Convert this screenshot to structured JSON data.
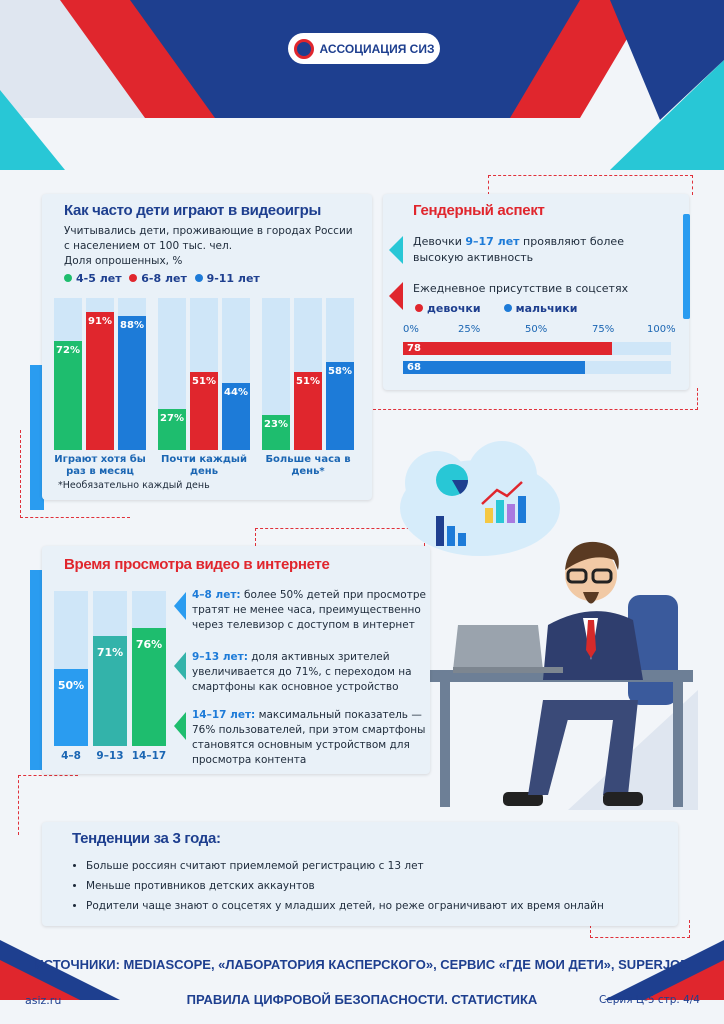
{
  "header": {
    "logo_text": "АССОЦИАЦИЯ СИЗ"
  },
  "colors": {
    "navy": "#1e3f8f",
    "red": "#e0262d",
    "cyan": "#28c7d6",
    "blue": "#1d7bd8",
    "green": "#1ebd6e",
    "teal": "#33b3aa"
  },
  "games": {
    "title": "Как часто дети играют в видеоигры",
    "subtitle_1": "Учитывались дети, проживающие в городах России",
    "subtitle_2": "с населением от 100 тыс. чел.",
    "subtitle_3": "Доля опрошенных, %",
    "legend": [
      "4-5 лет",
      "6-8 лет",
      "9-11 лет"
    ],
    "footnote": "*Необязательно каждый день"
  },
  "gender": {
    "title": "Гендерный аспект",
    "fact_pre": "Девочки ",
    "fact_highlight": "9–17 лет",
    "fact_post": " проявляют более высокую активность",
    "subheading": "Ежедневное присутствие в соцсетях",
    "legend": [
      "девочки",
      "мальчики"
    ],
    "ticks": [
      "0%",
      "25%",
      "50%",
      "75%",
      "100%"
    ]
  },
  "video": {
    "title": "Время просмотра видео в интернете",
    "notes": [
      {
        "label": "4–8 лет:",
        "text": " более 50% детей при просмотре тратят не менее часа, преимущественно через телевизор с доступом в интернет"
      },
      {
        "label": "9–13 лет:",
        "text": " доля активных зрителей увеличивается  до 71%,  с переходом на смартфоны как основное устройство"
      },
      {
        "label": "14–17 лет:",
        "text": " максимальный показатель — 76% пользователей, при этом смартфоны становятся основным устройством для просмотра контента"
      }
    ]
  },
  "trends": {
    "title": "Тенденции за 3 года:",
    "items": [
      "Больше россиян считают приемлемой регистрацию с 13 лет",
      "Меньше противников детских аккаунтов",
      "Родители чаще знают о соцсетях у младших детей, но реже ограничивают их время онлайн"
    ]
  },
  "sources": "ИСТОЧНИКИ: MEDIASCOPE, «ЛАБОРАТОРИЯ КАСПЕРСКОГО», СЕРВИС «ГДЕ МОИ ДЕТИ», SUPERJOB",
  "footer": {
    "site": "asiz.ru",
    "title": "ПРАВИЛА ЦИФРОВОЙ БЕЗОПАСНОСТИ. СТАТИСТИКА",
    "page": "Серия Ц-5 стр. 4/4"
  },
  "chart_data": [
    {
      "type": "bar",
      "title": "Как часто дети играют в видеоигры",
      "ylabel": "Доля опрошенных, %",
      "ylim": [
        0,
        100
      ],
      "categories": [
        "Играют хотя бы раз в месяц",
        "Почти каждый день",
        "Больше часа в день*"
      ],
      "series": [
        {
          "name": "4-5 лет",
          "color": "#1ebd6e",
          "values": [
            72,
            27,
            23
          ]
        },
        {
          "name": "6-8 лет",
          "color": "#e0262d",
          "values": [
            91,
            51,
            51
          ]
        },
        {
          "name": "9-11 лет",
          "color": "#1d7bd8",
          "values": [
            88,
            44,
            58
          ]
        }
      ]
    },
    {
      "type": "bar",
      "title": "Ежедневное присутствие в соцсетях",
      "orientation": "horizontal",
      "xlim": [
        0,
        100
      ],
      "categories": [
        "девочки",
        "мальчики"
      ],
      "values": [
        78,
        68
      ],
      "colors": [
        "#e0262d",
        "#1d7bd8"
      ]
    },
    {
      "type": "bar",
      "title": "Время просмотра видео в интернете",
      "ylim": [
        0,
        100
      ],
      "categories": [
        "4-8",
        "9-13",
        "14-17"
      ],
      "values": [
        50,
        71,
        76
      ],
      "colors": [
        "#2a9cf0",
        "#33b3aa",
        "#1ebd6e"
      ]
    }
  ]
}
